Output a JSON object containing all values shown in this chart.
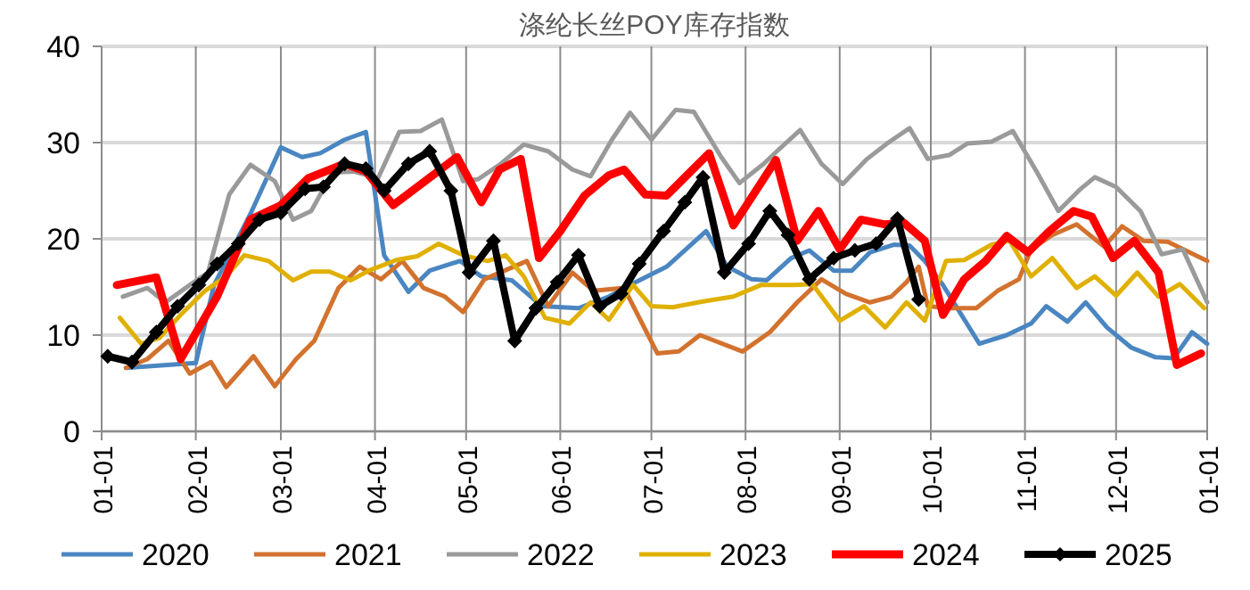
{
  "chart_data": {
    "type": "line",
    "title": "涤纶长丝POY库存指数",
    "xlim": [
      "--01-01",
      "--12-31"
    ],
    "xticks": [
      {
        "value": "--01-01",
        "label": "01-01"
      },
      {
        "value": "--02-01",
        "label": "02-01"
      },
      {
        "value": "--03-01",
        "label": "03-01"
      },
      {
        "value": "--04-01",
        "label": "04-01"
      },
      {
        "value": "--05-01",
        "label": "05-01"
      },
      {
        "value": "--06-01",
        "label": "06-01"
      },
      {
        "value": "--07-01",
        "label": "07-01"
      },
      {
        "value": "--08-01",
        "label": "08-01"
      },
      {
        "value": "--09-01",
        "label": "09-01"
      },
      {
        "value": "--10-01",
        "label": "10-01"
      },
      {
        "value": "--11-01",
        "label": "11-01"
      },
      {
        "value": "--12-01",
        "label": "12-01"
      },
      {
        "value": "--12-31",
        "label": "01-01"
      }
    ],
    "ylim": [
      0,
      40
    ],
    "yticks": [
      0,
      10,
      20,
      30,
      40
    ],
    "grid": true,
    "legend": "bottom",
    "series": [
      {
        "name": "2020",
        "color": "#4a86c1",
        "x": [
          "--01-09",
          "--02-01",
          "--02-07",
          "--02-19",
          "--03-01",
          "--03-08",
          "--03-14",
          "--03-22",
          "--03-29",
          "--04-04",
          "--04-12",
          "--04-19",
          "--04-29",
          "--05-06",
          "--05-16",
          "--05-26",
          "--06-07",
          "--06-17",
          "--06-24",
          "--07-06",
          "--07-19",
          "--07-26",
          "--08-03",
          "--08-08",
          "--08-16",
          "--08-22",
          "--08-30",
          "--09-05",
          "--09-11",
          "--09-19",
          "--09-24",
          "--09-29",
          "--10-05",
          "--10-17",
          "--10-26",
          "--11-03",
          "--11-08",
          "--11-15",
          "--11-21",
          "--11-28",
          "--12-06",
          "--12-14",
          "--12-20",
          "--12-26",
          "--12-31"
        ],
        "values": [
          6.6,
          7.1,
          15.2,
          22.6,
          29.5,
          28.5,
          28.9,
          30.3,
          31.1,
          18.3,
          14.5,
          16.7,
          17.7,
          16.1,
          15.7,
          13.0,
          12.8,
          14.0,
          15.2,
          17.1,
          20.8,
          17.1,
          15.8,
          15.7,
          18.0,
          18.8,
          16.7,
          16.7,
          18.6,
          19.4,
          19.3,
          17.7,
          15.2,
          9.1,
          10.0,
          11.2,
          13.0,
          11.4,
          13.4,
          10.8,
          8.7,
          7.7,
          7.6,
          10.3,
          9.1
        ]
      },
      {
        "name": "2021",
        "color": "#d2722e",
        "x": [
          "--01-09",
          "--01-16",
          "--01-23",
          "--01-30",
          "--02-06",
          "--02-11",
          "--02-20",
          "--02-27",
          "--03-06",
          "--03-12",
          "--03-20",
          "--03-27",
          "--04-03",
          "--04-10",
          "--04-17",
          "--04-24",
          "--04-30",
          "--05-07",
          "--05-21",
          "--05-28",
          "--06-05",
          "--06-12",
          "--06-22",
          "--07-03",
          "--07-10",
          "--07-17",
          "--07-31",
          "--08-09",
          "--08-18",
          "--08-26",
          "--09-03",
          "--09-11",
          "--09-18",
          "--09-23",
          "--09-27",
          "--09-30",
          "--10-07",
          "--10-16",
          "--10-23",
          "--10-30",
          "--11-03",
          "--11-10",
          "--11-18",
          "--11-27",
          "--12-03",
          "--12-10",
          "--12-18",
          "--12-31"
        ],
        "values": [
          6.6,
          7.5,
          9.4,
          6.0,
          7.2,
          4.6,
          7.8,
          4.7,
          7.5,
          9.4,
          14.9,
          17.1,
          15.8,
          17.7,
          14.9,
          14.0,
          12.4,
          15.8,
          17.7,
          13.0,
          16.5,
          14.6,
          14.9,
          8.1,
          8.3,
          10.0,
          8.3,
          10.3,
          13.4,
          15.8,
          14.3,
          13.4,
          14.0,
          15.5,
          17.1,
          13.0,
          12.8,
          12.8,
          14.6,
          15.8,
          18.9,
          20.4,
          21.5,
          19.2,
          21.3,
          19.8,
          19.7,
          17.7
        ]
      },
      {
        "name": "2022",
        "color": "#9a9a9a",
        "x": [
          "--01-08",
          "--01-16",
          "--01-22",
          "--01-30",
          "--02-05",
          "--02-12",
          "--02-19",
          "--02-27",
          "--03-05",
          "--03-11",
          "--03-18",
          "--03-25",
          "--04-02",
          "--04-09",
          "--04-16",
          "--04-23",
          "--04-30",
          "--05-05",
          "--05-12",
          "--05-20",
          "--05-28",
          "--06-05",
          "--06-11",
          "--06-18",
          "--06-24",
          "--07-01",
          "--07-09",
          "--07-15",
          "--07-24",
          "--07-30",
          "--08-07",
          "--08-11",
          "--08-19",
          "--08-26",
          "--09-02",
          "--09-10",
          "--09-17",
          "--09-24",
          "--09-30",
          "--10-07",
          "--10-13",
          "--10-21",
          "--10-28",
          "--11-05",
          "--11-12",
          "--11-19",
          "--11-24",
          "--12-01",
          "--12-09",
          "--12-16",
          "--12-23",
          "--12-31"
        ],
        "values": [
          14.0,
          14.9,
          13.4,
          15.2,
          16.5,
          24.6,
          27.7,
          26.0,
          22.0,
          22.9,
          26.9,
          27.0,
          26.3,
          31.1,
          31.2,
          32.4,
          26.0,
          26.2,
          27.7,
          29.8,
          29.1,
          27.2,
          26.5,
          30.3,
          33.1,
          30.3,
          33.4,
          33.2,
          28.5,
          25.8,
          27.8,
          29.0,
          31.3,
          27.8,
          25.7,
          28.3,
          30.0,
          31.5,
          28.3,
          28.7,
          29.9,
          30.1,
          31.2,
          26.9,
          22.9,
          25.1,
          26.4,
          25.4,
          22.9,
          18.4,
          18.9,
          13.4
        ]
      },
      {
        "name": "2023",
        "color": "#e0b000",
        "x": [
          "--01-07",
          "--01-14",
          "--01-20",
          "--01-27",
          "--02-04",
          "--02-11",
          "--02-17",
          "--02-25",
          "--03-05",
          "--03-11",
          "--03-17",
          "--03-24",
          "--03-30",
          "--04-08",
          "--04-15",
          "--04-22",
          "--04-30",
          "--05-08",
          "--05-14",
          "--05-20",
          "--05-27",
          "--06-04",
          "--06-11",
          "--06-17",
          "--06-25",
          "--07-01",
          "--07-08",
          "--07-18",
          "--07-28",
          "--08-06",
          "--08-17",
          "--08-23",
          "--09-01",
          "--09-09",
          "--09-16",
          "--09-23",
          "--09-29",
          "--10-06",
          "--10-12",
          "--10-21",
          "--10-27",
          "--11-03",
          "--11-10",
          "--11-18",
          "--11-24",
          "--12-01",
          "--12-08",
          "--12-15",
          "--12-22",
          "--12-30"
        ],
        "values": [
          11.8,
          9.1,
          9.7,
          12.1,
          14.6,
          16.1,
          18.3,
          17.7,
          15.7,
          16.6,
          16.6,
          15.7,
          16.7,
          17.8,
          18.2,
          19.5,
          18.3,
          17.7,
          18.3,
          16.1,
          11.8,
          11.2,
          13.4,
          11.6,
          15.2,
          13.0,
          12.9,
          13.5,
          14.0,
          15.2,
          15.2,
          15.3,
          11.5,
          13.0,
          10.8,
          13.4,
          11.5,
          17.7,
          17.8,
          19.4,
          19.8,
          16.1,
          18.0,
          14.9,
          16.1,
          14.1,
          16.5,
          14.0,
          15.3,
          12.8
        ]
      },
      {
        "name": "2024",
        "color": "#ff0000",
        "x": [
          "--01-06",
          "--01-19",
          "--01-27",
          "--02-08",
          "--02-19",
          "--03-01",
          "--03-10",
          "--03-22",
          "--03-29",
          "--04-07",
          "--04-15",
          "--04-28",
          "--05-06",
          "--05-12",
          "--05-19",
          "--05-25",
          "--06-01",
          "--06-09",
          "--06-17",
          "--06-22",
          "--06-29",
          "--07-06",
          "--07-20",
          "--07-28",
          "--08-11",
          "--08-18",
          "--08-25",
          "--09-01",
          "--09-08",
          "--09-16",
          "--09-22",
          "--09-29",
          "--10-05",
          "--10-12",
          "--10-19",
          "--10-26",
          "--11-02",
          "--11-09",
          "--11-17",
          "--11-23",
          "--11-30",
          "--12-07",
          "--12-15",
          "--12-21",
          "--12-29"
        ],
        "values": [
          15.2,
          16.0,
          7.5,
          14.0,
          22.0,
          23.5,
          26.3,
          27.8,
          27.0,
          23.5,
          25.4,
          28.5,
          23.8,
          27.2,
          28.3,
          18.0,
          20.8,
          24.5,
          26.6,
          27.2,
          24.6,
          24.5,
          28.9,
          21.4,
          28.2,
          19.8,
          22.9,
          18.9,
          22.0,
          21.5,
          21.7,
          19.8,
          12.1,
          15.8,
          17.7,
          20.3,
          18.6,
          20.8,
          22.9,
          22.3,
          18.0,
          19.8,
          16.5,
          6.9,
          8.1
        ]
      },
      {
        "name": "2025",
        "color": "#000000",
        "marker": "diamond",
        "x": [
          "--01-03",
          "--01-11",
          "--01-19",
          "--01-26",
          "--02-02",
          "--02-08",
          "--02-15",
          "--02-22",
          "--03-01",
          "--03-09",
          "--03-15",
          "--03-22",
          "--03-29",
          "--04-04",
          "--04-12",
          "--04-19",
          "--04-26",
          "--05-02",
          "--05-10",
          "--05-17",
          "--05-24",
          "--05-31",
          "--06-07",
          "--06-14",
          "--06-21",
          "--06-27",
          "--07-05",
          "--07-12",
          "--07-18",
          "--07-25",
          "--08-02",
          "--08-09",
          "--08-15",
          "--08-22",
          "--08-30",
          "--09-06",
          "--09-13",
          "--09-20",
          "--09-27"
        ],
        "values": [
          7.8,
          7.2,
          10.3,
          13.0,
          15.2,
          17.4,
          19.5,
          22.0,
          22.7,
          25.2,
          25.4,
          27.8,
          27.3,
          25.0,
          27.8,
          29.1,
          25.0,
          16.5,
          19.8,
          9.4,
          12.8,
          15.5,
          18.3,
          13.0,
          14.3,
          17.4,
          20.8,
          23.8,
          26.4,
          16.5,
          19.5,
          22.9,
          20.4,
          15.8,
          18.0,
          18.8,
          19.5,
          22.1,
          13.7
        ]
      }
    ]
  }
}
